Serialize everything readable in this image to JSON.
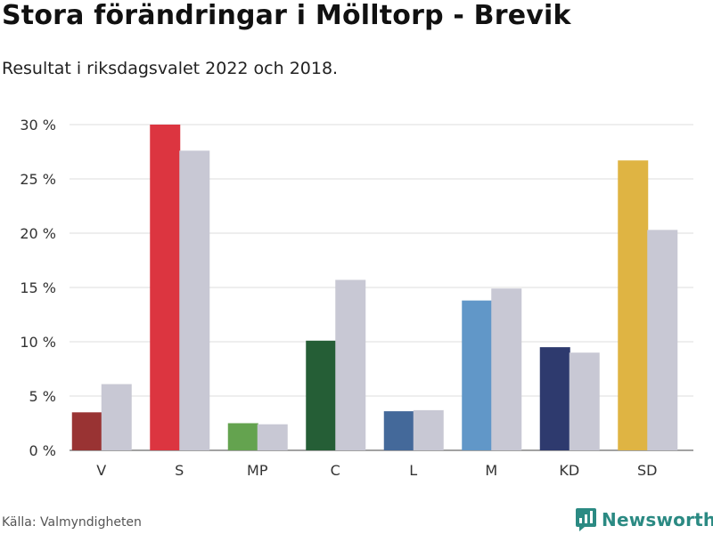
{
  "header": {
    "title": "Stora förändringar i Mölltorp - Brevik",
    "subtitle": "Resultat i riksdagsvalet 2022 och 2018."
  },
  "footer": {
    "source": "Källa: Valmyndigheten",
    "brand": "Newsworthy",
    "brand_icon": "bar-chart-logo-icon",
    "brand_color": "#2b8a83"
  },
  "chart_data": {
    "type": "bar",
    "categories": [
      "V",
      "S",
      "MP",
      "C",
      "L",
      "M",
      "KD",
      "SD"
    ],
    "series": [
      {
        "values": [
          3.5,
          30.0,
          2.5,
          10.1,
          3.6,
          13.8,
          9.5,
          26.7
        ],
        "colors": [
          "#993333",
          "#dc3540",
          "#64a34f",
          "#255e36",
          "#44699a",
          "#6197c8",
          "#2e3a6e",
          "#dfb443"
        ]
      },
      {
        "values": [
          6.1,
          27.6,
          2.4,
          15.7,
          3.7,
          14.9,
          9.0,
          20.3
        ],
        "colors": [
          "#c8c8d4",
          "#c8c8d4",
          "#c8c8d4",
          "#c8c8d4",
          "#c8c8d4",
          "#c8c8d4",
          "#c8c8d4",
          "#c8c8d4"
        ]
      }
    ],
    "ylim": [
      0,
      30
    ],
    "yticks": [
      {
        "value": 0,
        "label": "0 %"
      },
      {
        "value": 5,
        "label": "5 %"
      },
      {
        "value": 10,
        "label": "10 %"
      },
      {
        "value": 15,
        "label": "15 %"
      },
      {
        "value": 20,
        "label": "20 %"
      },
      {
        "value": 25,
        "label": "25 %"
      },
      {
        "value": 30,
        "label": "30 %"
      }
    ],
    "grid": true,
    "legend": "none"
  }
}
